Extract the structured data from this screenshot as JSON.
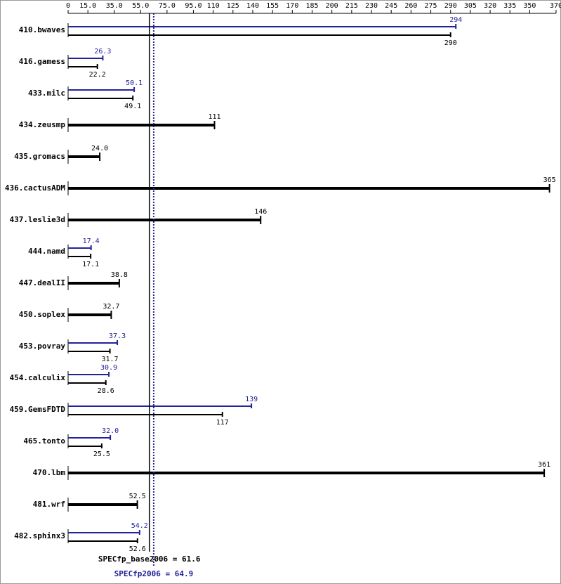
{
  "chart_data": {
    "type": "hbar-pair",
    "categories": [
      "410.bwaves",
      "416.gamess",
      "433.milc",
      "434.zeusmp",
      "435.gromacs",
      "436.cactusADM",
      "437.leslie3d",
      "444.namd",
      "447.dealII",
      "450.soplex",
      "453.povray",
      "454.calculix",
      "459.GemsFDTD",
      "465.tonto",
      "470.lbm",
      "481.wrf",
      "482.sphinx3"
    ],
    "series": [
      {
        "name": "peak",
        "color": "#22229a",
        "values": [
          294,
          26.3,
          50.1,
          null,
          null,
          null,
          null,
          17.4,
          null,
          null,
          37.3,
          30.9,
          139,
          32,
          null,
          null,
          54.2
        ],
        "value_labels": [
          "294",
          "26.3",
          "50.1",
          null,
          null,
          null,
          null,
          "17.4",
          null,
          null,
          "37.3",
          "30.9",
          "139",
          "32.0",
          null,
          null,
          "54.2"
        ]
      },
      {
        "name": "base",
        "color": "#000000",
        "values": [
          290,
          22.2,
          49.1,
          111,
          24,
          365,
          146,
          17.1,
          38.8,
          32.7,
          31.7,
          28.6,
          117,
          25.5,
          361,
          52.5,
          52.6
        ],
        "value_labels": [
          "290",
          "22.2",
          "49.1",
          "111",
          "24.0",
          "365",
          "146",
          "17.1",
          "38.8",
          "32.7",
          "31.7",
          "28.6",
          "117",
          "25.5",
          "361",
          "52.5",
          "52.6"
        ]
      }
    ],
    "xlim": [
      0,
      370
    ],
    "xticks": [
      0,
      {
        "value": 15,
        "label": "15.0"
      },
      {
        "value": 35,
        "label": "35.0"
      },
      {
        "value": 55,
        "label": "55.0"
      },
      {
        "value": 75,
        "label": "75.0"
      },
      {
        "value": 95,
        "label": "95.0"
      },
      110,
      125,
      140,
      155,
      170,
      185,
      200,
      215,
      230,
      245,
      260,
      275,
      290,
      305,
      320,
      335,
      350,
      370
    ],
    "reference_lines": [
      {
        "label": "SPECfp_base2006 = 61.6",
        "value": 61.6,
        "color": "#000000",
        "style": "solid"
      },
      {
        "label": "SPECfp2006 = 64.9",
        "value": 64.9,
        "color": "#22229a",
        "style": "dotted"
      }
    ]
  }
}
